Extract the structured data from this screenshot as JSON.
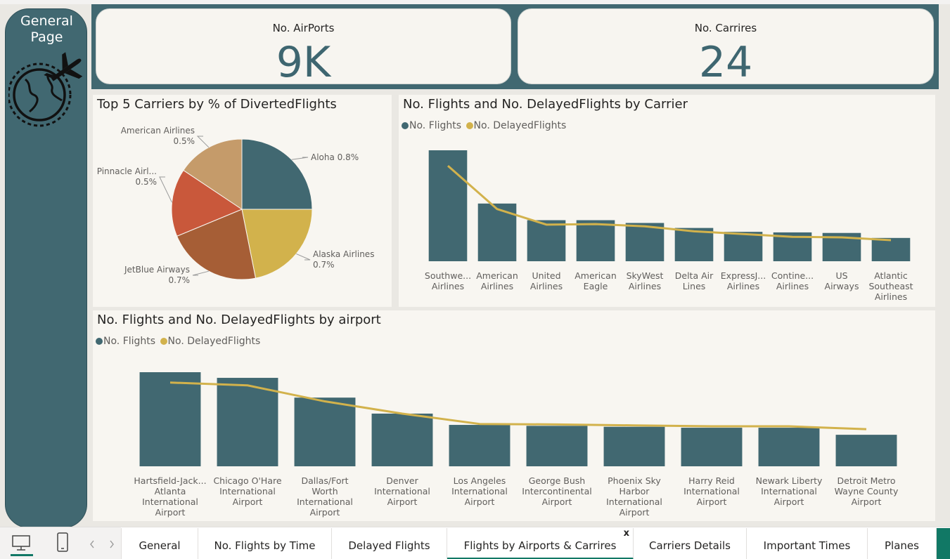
{
  "sidebar": {
    "title": "General Page",
    "logo_icon": "globe-plane-icon"
  },
  "kpis": [
    {
      "label": "No. AirPorts",
      "value": "9K"
    },
    {
      "label": "No. Carrires",
      "value": "24"
    }
  ],
  "pie_panel": {
    "title": "Top 5 Carriers by % of DivertedFlights"
  },
  "carrier_panel": {
    "title": "No. Flights and No. DelayedFlights by Carrier"
  },
  "airport_panel": {
    "title": "No. Flights and No. DelayedFlights by airport"
  },
  "legend": {
    "flights": "No. Flights",
    "delayed": "No. DelayedFlights"
  },
  "colors": {
    "flights": "#416871",
    "delayed": "#d2b24c",
    "sidebar": "#416871",
    "accent": "#117865"
  },
  "tabs": [
    {
      "label": "General"
    },
    {
      "label": "No. Flights by Time"
    },
    {
      "label": "Delayed Flights"
    },
    {
      "label": "Flights by Airports & Carrires",
      "active": true,
      "close": "x"
    },
    {
      "label": "Carriers Details"
    },
    {
      "label": "Important Times"
    },
    {
      "label": "Planes"
    }
  ],
  "chart_data": [
    {
      "type": "pie",
      "title": "Top 5 Carriers by % of DivertedFlights",
      "slices": [
        {
          "name": "Aloha",
          "label": "Aloha 0.8%",
          "value": 0.8,
          "color": "#416871"
        },
        {
          "name": "Alaska Airlines",
          "label": "Alaska Airlines",
          "pct": "0.7%",
          "value": 0.7,
          "color": "#d2b24c"
        },
        {
          "name": "JetBlue Airways",
          "label": "JetBlue Airways",
          "pct": "0.7%",
          "value": 0.7,
          "color": "#a65e36"
        },
        {
          "name": "Pinnacle Airl...",
          "label": "Pinnacle Airl...",
          "pct": "0.5%",
          "value": 0.5,
          "color": "#c9583b"
        },
        {
          "name": "American Airlines",
          "label": "American Airlines",
          "pct": "0.5%",
          "value": 0.5,
          "color": "#c59b6a"
        }
      ]
    },
    {
      "type": "bar",
      "title": "No. Flights and No. DelayedFlights by Carrier",
      "categories": [
        [
          "Southwe...",
          "Airlines"
        ],
        [
          "American",
          "Airlines"
        ],
        [
          "United",
          "Airlines"
        ],
        [
          "American",
          "Eagle"
        ],
        [
          "SkyWest",
          "Airlines"
        ],
        [
          "Delta Air",
          "Lines"
        ],
        [
          "ExpressJ...",
          "Airlines"
        ],
        [
          "Contine...",
          "Airlines"
        ],
        [
          "US",
          "Airways"
        ],
        [
          "Atlantic",
          "Southeast",
          "Airlines"
        ]
      ],
      "series": [
        {
          "name": "No. Flights",
          "type": "bar",
          "values": [
            1000,
            520,
            370,
            370,
            345,
            300,
            265,
            260,
            255,
            210
          ]
        },
        {
          "name": "No. DelayedFlights",
          "type": "line",
          "values": [
            860,
            470,
            330,
            335,
            315,
            270,
            245,
            220,
            215,
            190
          ]
        }
      ],
      "ylim": [
        0,
        1000
      ]
    },
    {
      "type": "bar",
      "title": "No. Flights and No. DelayedFlights by airport",
      "categories": [
        [
          "Hartsfield-Jack...",
          "Atlanta",
          "International",
          "Airport"
        ],
        [
          "Chicago O'Hare",
          "International",
          "Airport"
        ],
        [
          "Dallas/Fort",
          "Worth",
          "International",
          "Airport"
        ],
        [
          "Denver",
          "International",
          "Airport"
        ],
        [
          "Los Angeles",
          "International",
          "Airport"
        ],
        [
          "George Bush",
          "Intercontinental",
          "Airport"
        ],
        [
          "Phoenix Sky",
          "Harbor",
          "International",
          "Airport"
        ],
        [
          "Harry Reid",
          "International",
          "Airport"
        ],
        [
          "Newark Liberty",
          "International",
          "Airport"
        ],
        [
          "Detroit Metro",
          "Wayne County",
          "Airport"
        ]
      ],
      "series": [
        {
          "name": "No. Flights",
          "type": "bar",
          "values": [
            1000,
            940,
            730,
            560,
            440,
            430,
            420,
            410,
            410,
            335
          ]
        },
        {
          "name": "No. DelayedFlights",
          "type": "line",
          "values": [
            890,
            860,
            690,
            560,
            450,
            445,
            435,
            425,
            425,
            395
          ]
        }
      ],
      "ylim": [
        0,
        1000
      ]
    }
  ]
}
